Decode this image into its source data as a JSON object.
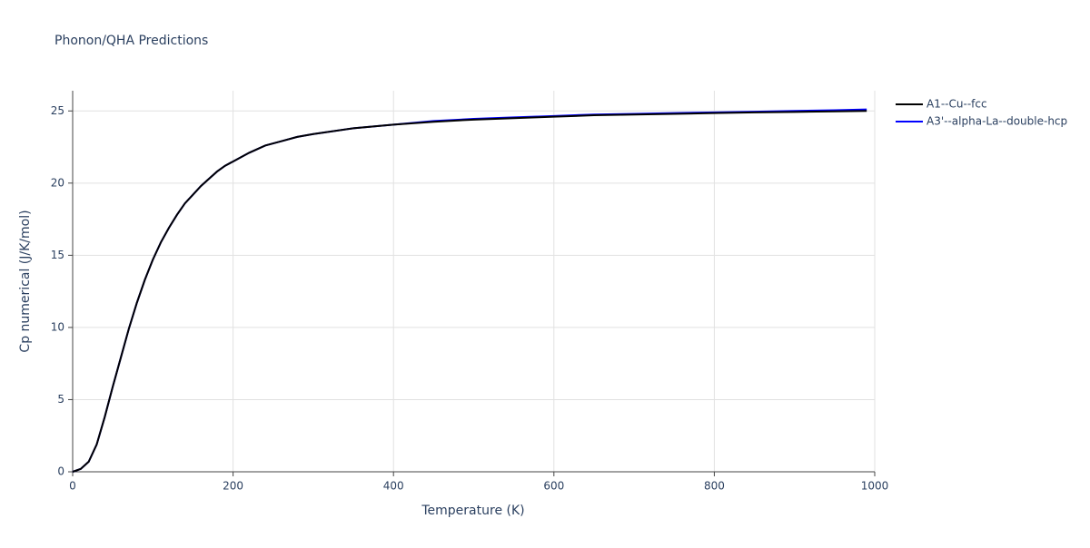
{
  "chart_data": {
    "type": "line",
    "title": "Phonon/QHA Predictions",
    "x_label": "Temperature (K)",
    "y_label": "Cp numerical (J/K/mol)",
    "x": [
      0,
      10,
      20,
      30,
      40,
      50,
      60,
      70,
      80,
      90,
      100,
      110,
      120,
      130,
      140,
      150,
      160,
      170,
      180,
      190,
      200,
      220,
      240,
      260,
      280,
      300,
      350,
      400,
      450,
      500,
      550,
      600,
      650,
      700,
      750,
      800,
      850,
      900,
      950,
      990
    ],
    "series": [
      {
        "name": "A1--Cu--fcc",
        "color": "#000000",
        "values": [
          0,
          0.2,
          0.7,
          1.9,
          3.8,
          5.9,
          7.9,
          9.9,
          11.7,
          13.3,
          14.7,
          15.9,
          16.9,
          17.8,
          18.6,
          19.2,
          19.8,
          20.3,
          20.8,
          21.2,
          21.5,
          22.1,
          22.6,
          22.9,
          23.2,
          23.4,
          23.8,
          24.05,
          24.25,
          24.4,
          24.5,
          24.6,
          24.7,
          24.75,
          24.8,
          24.85,
          24.9,
          24.93,
          24.97,
          25.0
        ]
      },
      {
        "name": "A3'--alpha-La--double-hcp",
        "color": "#0000ff",
        "values": [
          0,
          0.2,
          0.7,
          1.9,
          3.8,
          5.9,
          7.9,
          9.9,
          11.7,
          13.3,
          14.7,
          15.9,
          16.9,
          17.8,
          18.6,
          19.2,
          19.8,
          20.3,
          20.8,
          21.2,
          21.5,
          22.1,
          22.6,
          22.9,
          23.2,
          23.4,
          23.8,
          24.05,
          24.3,
          24.45,
          24.55,
          24.65,
          24.75,
          24.8,
          24.85,
          24.9,
          24.95,
          25.0,
          25.05,
          25.1
        ]
      }
    ],
    "xlim": [
      0,
      1000
    ],
    "xticks": [
      0,
      200,
      400,
      600,
      800,
      1000
    ],
    "ylim": [
      0,
      26.4
    ],
    "yticks": [
      0,
      5,
      10,
      15,
      20,
      25
    ],
    "grid": true,
    "legend": "right"
  }
}
